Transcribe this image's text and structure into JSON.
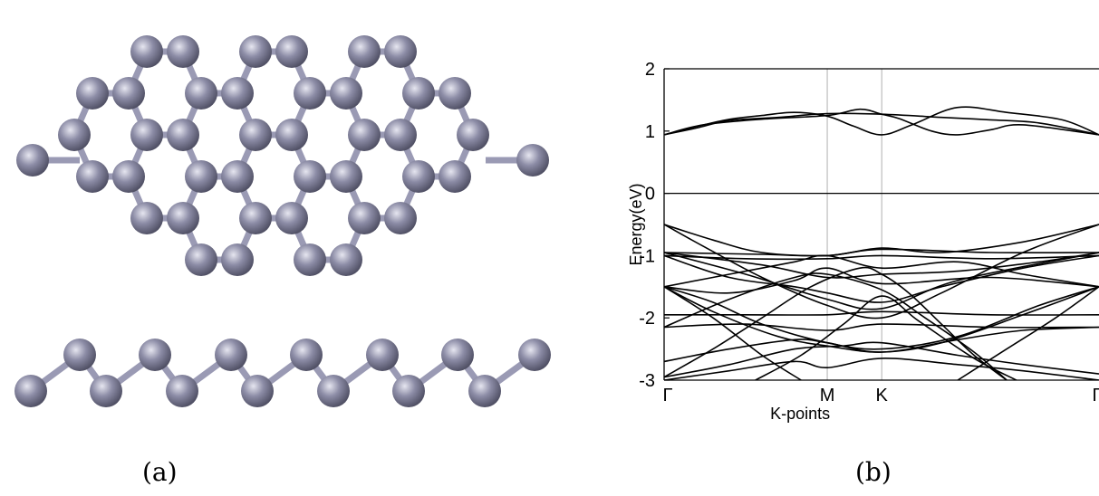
{
  "captions": {
    "a": "(a)",
    "b": "(b)"
  },
  "structure": {
    "atom_color": "#8c8ca6",
    "bond_color": "#9a9ab4"
  },
  "chart_data": {
    "type": "line",
    "title": "",
    "xlabel": "K-points",
    "ylabel": "Energy(eV)",
    "ylim": [
      -3,
      2
    ],
    "yticks": [
      2,
      1,
      0,
      -1,
      -2,
      -3
    ],
    "xticks": [
      {
        "label": "Γ",
        "k": 0
      },
      {
        "label": "M",
        "k": 0.5
      },
      {
        "label": "K",
        "k": 0.667
      },
      {
        "label": "Γ",
        "k": 1.333
      }
    ],
    "fermi_level": 0,
    "grid": "vertical lines at high-symmetry points",
    "series": [
      {
        "values": [
          [
            0,
            0.94
          ],
          [
            0.1,
            1.05
          ],
          [
            0.2,
            1.17
          ],
          [
            0.35,
            1.22
          ],
          [
            0.5,
            1.28
          ],
          [
            0.667,
            1.27
          ],
          [
            0.85,
            1.22
          ],
          [
            1.0,
            1.18
          ],
          [
            1.15,
            1.13
          ],
          [
            1.333,
            0.94
          ]
        ]
      },
      {
        "values": [
          [
            0,
            0.94
          ],
          [
            0.12,
            1.1
          ],
          [
            0.3,
            1.19
          ],
          [
            0.5,
            1.25
          ],
          [
            0.6,
            1.35
          ],
          [
            0.667,
            1.27
          ],
          [
            0.72,
            1.2
          ],
          [
            0.82,
            1.0
          ],
          [
            0.9,
            0.94
          ],
          [
            1.0,
            1.02
          ],
          [
            1.1,
            1.1
          ],
          [
            1.333,
            0.94
          ]
        ]
      },
      {
        "values": [
          [
            0,
            0.94
          ],
          [
            0.18,
            1.17
          ],
          [
            0.3,
            1.25
          ],
          [
            0.4,
            1.3
          ],
          [
            0.5,
            1.24
          ],
          [
            0.58,
            1.08
          ],
          [
            0.667,
            0.94
          ],
          [
            0.76,
            1.1
          ],
          [
            0.9,
            1.38
          ],
          [
            1.05,
            1.3
          ],
          [
            1.22,
            1.18
          ],
          [
            1.333,
            0.94
          ]
        ]
      },
      {
        "values": [
          [
            0,
            -0.5
          ],
          [
            0.15,
            -0.75
          ],
          [
            0.3,
            -0.95
          ],
          [
            0.5,
            -1.0
          ],
          [
            0.667,
            -0.88
          ],
          [
            0.85,
            -0.95
          ],
          [
            1.1,
            -0.78
          ],
          [
            1.333,
            -0.5
          ]
        ]
      },
      {
        "values": [
          [
            0,
            -0.5
          ],
          [
            0.12,
            -0.85
          ],
          [
            0.3,
            -1.35
          ],
          [
            0.5,
            -1.8
          ],
          [
            0.667,
            -2.0
          ],
          [
            0.85,
            -1.6
          ],
          [
            1.1,
            -0.95
          ],
          [
            1.333,
            -0.5
          ]
        ]
      },
      {
        "values": [
          [
            0,
            -0.95
          ],
          [
            0.3,
            -0.98
          ],
          [
            0.5,
            -1.0
          ],
          [
            0.667,
            -0.9
          ],
          [
            1.0,
            -0.95
          ],
          [
            1.333,
            -0.95
          ]
        ]
      },
      {
        "values": [
          [
            0,
            -0.95
          ],
          [
            0.25,
            -1.3
          ],
          [
            0.5,
            -1.7
          ],
          [
            0.667,
            -1.85
          ],
          [
            0.9,
            -1.4
          ],
          [
            1.333,
            -0.95
          ]
        ]
      },
      {
        "values": [
          [
            0,
            -1.0
          ],
          [
            0.25,
            -1.05
          ],
          [
            0.5,
            -1.05
          ],
          [
            0.667,
            -1.0
          ],
          [
            1.0,
            -1.05
          ],
          [
            1.333,
            -1.0
          ]
        ]
      },
      {
        "values": [
          [
            0,
            -1.5
          ],
          [
            0.2,
            -1.3
          ],
          [
            0.4,
            -1.1
          ],
          [
            0.5,
            -1.0
          ],
          [
            0.667,
            -1.2
          ],
          [
            0.9,
            -1.1
          ],
          [
            1.1,
            -1.3
          ],
          [
            1.333,
            -1.5
          ]
        ]
      },
      {
        "values": [
          [
            0,
            -1.5
          ],
          [
            0.2,
            -1.6
          ],
          [
            0.4,
            -1.4
          ],
          [
            0.5,
            -1.2
          ],
          [
            0.667,
            -1.45
          ],
          [
            1.0,
            -1.35
          ],
          [
            1.333,
            -1.5
          ]
        ]
      },
      {
        "values": [
          [
            0,
            -1.5
          ],
          [
            0.15,
            -1.9
          ],
          [
            0.35,
            -2.3
          ],
          [
            0.5,
            -2.45
          ],
          [
            0.667,
            -2.55
          ],
          [
            0.85,
            -2.4
          ],
          [
            1.1,
            -1.95
          ],
          [
            1.333,
            -1.5
          ]
        ]
      },
      {
        "values": [
          [
            0,
            -1.5
          ],
          [
            0.15,
            -1.75
          ],
          [
            0.3,
            -2.1
          ],
          [
            0.5,
            -2.4
          ],
          [
            0.667,
            -2.5
          ],
          [
            0.9,
            -2.3
          ],
          [
            1.15,
            -1.8
          ],
          [
            1.333,
            -1.5
          ]
        ]
      },
      {
        "values": [
          [
            0,
            -1.95
          ],
          [
            0.25,
            -1.95
          ],
          [
            0.5,
            -1.95
          ],
          [
            0.667,
            -1.9
          ],
          [
            1.0,
            -1.95
          ],
          [
            1.333,
            -1.95
          ]
        ]
      },
      {
        "values": [
          [
            0,
            -2.15
          ],
          [
            0.25,
            -2.1
          ],
          [
            0.5,
            -2.2
          ],
          [
            0.667,
            -2.1
          ],
          [
            1.0,
            -2.15
          ],
          [
            1.333,
            -2.15
          ]
        ]
      },
      {
        "values": [
          [
            0,
            -2.7
          ],
          [
            0.2,
            -2.5
          ],
          [
            0.4,
            -2.35
          ],
          [
            0.5,
            -2.4
          ],
          [
            0.667,
            -2.55
          ],
          [
            0.9,
            -2.35
          ],
          [
            1.1,
            -2.2
          ],
          [
            1.333,
            -2.15
          ]
        ]
      },
      {
        "values": [
          [
            0,
            -2.95
          ],
          [
            0.2,
            -2.75
          ],
          [
            0.4,
            -2.5
          ],
          [
            0.55,
            -2.45
          ],
          [
            0.667,
            -2.4
          ],
          [
            0.9,
            -2.6
          ],
          [
            1.1,
            -2.75
          ],
          [
            1.333,
            -2.9
          ]
        ]
      },
      {
        "values": [
          [
            0,
            -3.0
          ],
          [
            0.2,
            -2.85
          ],
          [
            0.4,
            -2.7
          ],
          [
            0.5,
            -2.8
          ],
          [
            0.667,
            -2.65
          ],
          [
            0.9,
            -2.75
          ],
          [
            1.1,
            -2.85
          ],
          [
            1.333,
            -3.0
          ]
        ]
      },
      {
        "values": [
          [
            0,
            -1.5
          ],
          [
            0.15,
            -2.0
          ],
          [
            0.3,
            -2.6
          ],
          [
            0.42,
            -3.0
          ]
        ]
      },
      {
        "values": [
          [
            0.9,
            -3.0
          ],
          [
            1.05,
            -2.5
          ],
          [
            1.2,
            -2.0
          ],
          [
            1.333,
            -1.5
          ]
        ]
      },
      {
        "values": [
          [
            0,
            -2.95
          ],
          [
            0.15,
            -2.5
          ],
          [
            0.3,
            -2.0
          ],
          [
            0.45,
            -1.5
          ],
          [
            0.6,
            -1.2
          ],
          [
            0.667,
            -1.3
          ],
          [
            0.75,
            -1.6
          ],
          [
            0.85,
            -2.1
          ],
          [
            0.95,
            -2.6
          ],
          [
            1.05,
            -3.0
          ]
        ]
      },
      {
        "values": [
          [
            0.28,
            -3.0
          ],
          [
            0.42,
            -2.6
          ],
          [
            0.55,
            -2.1
          ],
          [
            0.667,
            -1.65
          ],
          [
            0.78,
            -2.05
          ],
          [
            0.95,
            -2.65
          ],
          [
            1.08,
            -3.0
          ]
        ]
      },
      {
        "values": [
          [
            0,
            -1.0
          ],
          [
            0.2,
            -1.35
          ],
          [
            0.4,
            -1.5
          ],
          [
            0.5,
            -1.6
          ],
          [
            0.667,
            -1.75
          ],
          [
            0.85,
            -1.5
          ],
          [
            1.1,
            -1.2
          ],
          [
            1.333,
            -1.0
          ]
        ]
      },
      {
        "values": [
          [
            0,
            -0.95
          ],
          [
            0.3,
            -1.15
          ],
          [
            0.5,
            -1.35
          ],
          [
            0.667,
            -1.3
          ],
          [
            0.9,
            -1.25
          ],
          [
            1.15,
            -1.1
          ],
          [
            1.333,
            -0.95
          ]
        ]
      },
      {
        "values": [
          [
            0,
            -2.15
          ],
          [
            0.2,
            -1.7
          ],
          [
            0.4,
            -1.35
          ],
          [
            0.5,
            -1.3
          ],
          [
            0.667,
            -1.55
          ],
          [
            0.8,
            -2.0
          ],
          [
            0.95,
            -2.55
          ],
          [
            1.05,
            -3.0
          ]
        ]
      }
    ]
  }
}
